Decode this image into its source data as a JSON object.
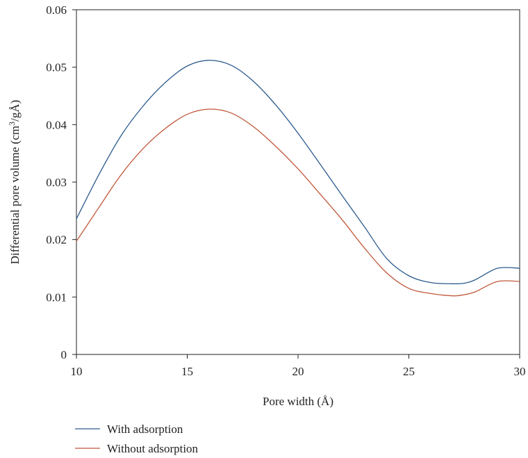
{
  "chart_data": {
    "type": "line",
    "xlabel": "Pore width (Å)",
    "ylabel_main": "Differential pore volume (cm",
    "ylabel_sup": "3",
    "ylabel_tail": "/gÅ)",
    "xlim": [
      10,
      30
    ],
    "ylim": [
      0,
      0.06
    ],
    "xticks": [
      "10",
      "15",
      "20",
      "25",
      "30"
    ],
    "yticks": [
      "0",
      "0.01",
      "0.02",
      "0.03",
      "0.04",
      "0.05",
      "0.06"
    ],
    "grid": false,
    "legend_position": "bottom-left",
    "series": [
      {
        "name": "With adsorption",
        "color": "#2b5a8c",
        "x": [
          10,
          11,
          12,
          13,
          14,
          15,
          16,
          17,
          18,
          19,
          20,
          21,
          22,
          23,
          24,
          25,
          26,
          27,
          27.5,
          28,
          29,
          30
        ],
        "y": [
          0.0236,
          0.0312,
          0.038,
          0.0432,
          0.0473,
          0.0502,
          0.0512,
          0.0503,
          0.0475,
          0.0434,
          0.0385,
          0.0331,
          0.0276,
          0.0222,
          0.0167,
          0.0137,
          0.0125,
          0.0123,
          0.0124,
          0.013,
          0.015,
          0.015
        ]
      },
      {
        "name": "Without adsorption",
        "color": "#c0573a",
        "x": [
          10,
          11,
          12,
          13,
          14,
          15,
          16,
          17,
          18,
          19,
          20,
          21,
          22,
          23,
          24,
          25,
          26,
          27,
          27.5,
          28,
          29,
          30
        ],
        "y": [
          0.0197,
          0.0255,
          0.0312,
          0.0358,
          0.0393,
          0.0418,
          0.0427,
          0.042,
          0.0396,
          0.0362,
          0.0323,
          0.0279,
          0.0234,
          0.0185,
          0.0142,
          0.0115,
          0.0106,
          0.0102,
          0.0104,
          0.0109,
          0.0127,
          0.0127
        ]
      }
    ]
  }
}
